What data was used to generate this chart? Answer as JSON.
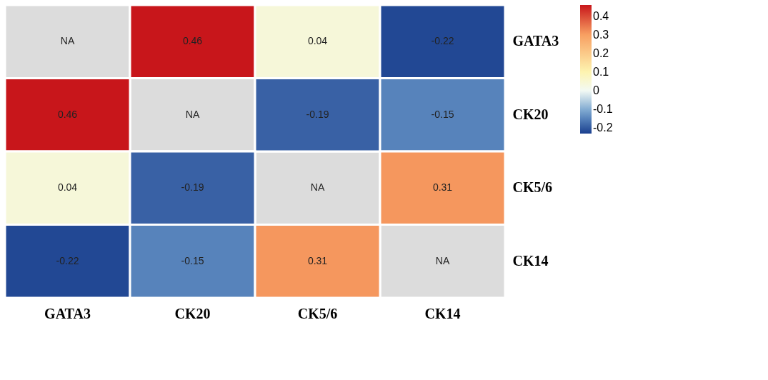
{
  "chart_data": {
    "type": "heatmap",
    "categories": [
      "GATA3",
      "CK20",
      "CK5/6",
      "CK14"
    ],
    "y_categories": [
      "GATA3",
      "CK20",
      "CK5/6",
      "CK14"
    ],
    "cells": [
      [
        null,
        0.46,
        0.04,
        -0.22
      ],
      [
        0.46,
        null,
        -0.19,
        -0.15
      ],
      [
        0.04,
        -0.19,
        null,
        0.31
      ],
      [
        -0.22,
        -0.15,
        0.31,
        null
      ]
    ],
    "cell_labels": [
      [
        "NA",
        "0.46",
        "0.04",
        "-0.22"
      ],
      [
        "0.46",
        "NA",
        "-0.19",
        "-0.15"
      ],
      [
        "0.04",
        "-0.19",
        "NA",
        "0.31"
      ],
      [
        "-0.22",
        "-0.15",
        "0.31",
        "NA"
      ]
    ],
    "clim": [
      -0.23,
      0.46
    ],
    "cticks": [
      -0.2,
      -0.1,
      0,
      0.1,
      0.2,
      0.3,
      0.4
    ]
  }
}
